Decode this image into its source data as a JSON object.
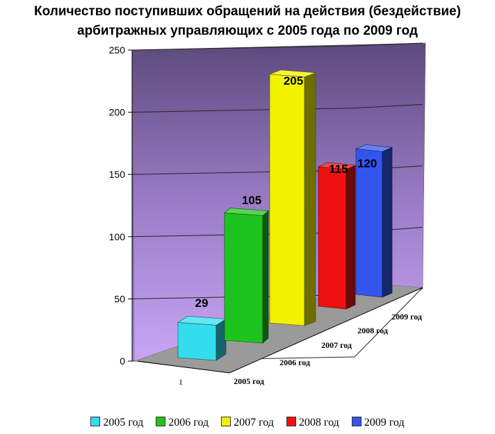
{
  "chart_data": {
    "type": "bar",
    "title": "Количество поступивших обращений на действия (бездействие)",
    "subtitle": "арбитражных управляющих с 2005 года по 2009 год",
    "category_label": "1",
    "ylim": [
      0,
      250
    ],
    "yticks": [
      "0",
      "50",
      "100",
      "150",
      "200",
      "250"
    ],
    "series": [
      {
        "name": "2005 год",
        "value": 29,
        "color": "#33ddee"
      },
      {
        "name": "2006 год",
        "value": 105,
        "color": "#1ec41e"
      },
      {
        "name": "2007 год",
        "value": 205,
        "color": "#f2f200"
      },
      {
        "name": "2008 год",
        "value": 115,
        "color": "#ee1111"
      },
      {
        "name": "2009 год",
        "value": 120,
        "color": "#3355ee"
      }
    ],
    "legend_position": "bottom",
    "grid": true
  }
}
